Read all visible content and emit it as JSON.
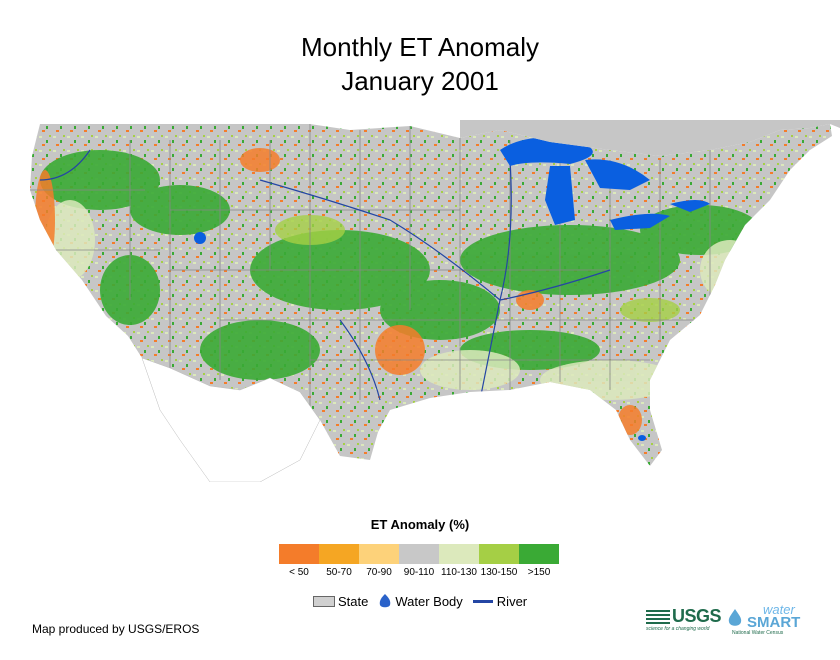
{
  "title_line1": "Monthly ET Anomaly",
  "title_line2": "January 2001",
  "legend": {
    "title": "ET Anomaly (%)",
    "classes": [
      {
        "label": "< 50",
        "color": "#f47c2a"
      },
      {
        "label": "50-70",
        "color": "#f5a623"
      },
      {
        "label": "70-90",
        "color": "#fdd27a"
      },
      {
        "label": "90-110",
        "color": "#c8c8c8"
      },
      {
        "label": "110-130",
        "color": "#dce9bc"
      },
      {
        "label": "130-150",
        "color": "#a5cf45"
      },
      {
        "label": ">150",
        "color": "#3aaa35"
      }
    ],
    "keys": {
      "state": "State",
      "water_body": "Water Body",
      "river": "River"
    }
  },
  "credit": "Map produced by USGS/EROS",
  "logos": {
    "usgs": "USGS",
    "usgs_tagline": "science for a changing world",
    "watersmart_water": "water",
    "watersmart_smart": "SMART",
    "watersmart_tagline": "National Water Census"
  },
  "colors": {
    "water": "#0a5fe0",
    "river": "#2446a4",
    "land_gray": "#c6c6c6",
    "state_line": "#888888"
  }
}
